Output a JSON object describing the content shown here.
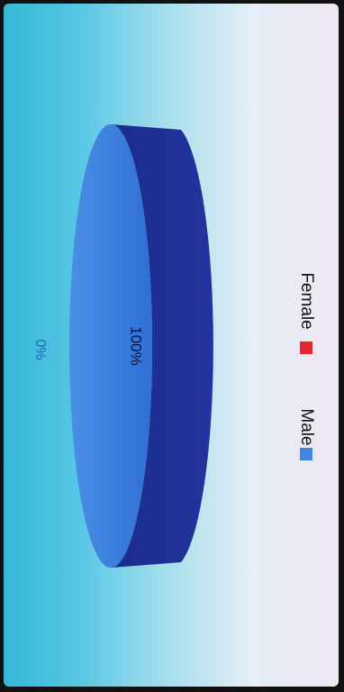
{
  "chart_data": {
    "type": "pie",
    "categories": [
      "Male",
      "Female"
    ],
    "values": [
      100,
      0
    ],
    "data_labels": [
      "100%",
      "0%"
    ],
    "colors": [
      "#3f86e0",
      "#e3262f"
    ],
    "legend": {
      "placement": "right"
    },
    "three_d": true,
    "orientation": "rotated-90-clockwise"
  }
}
